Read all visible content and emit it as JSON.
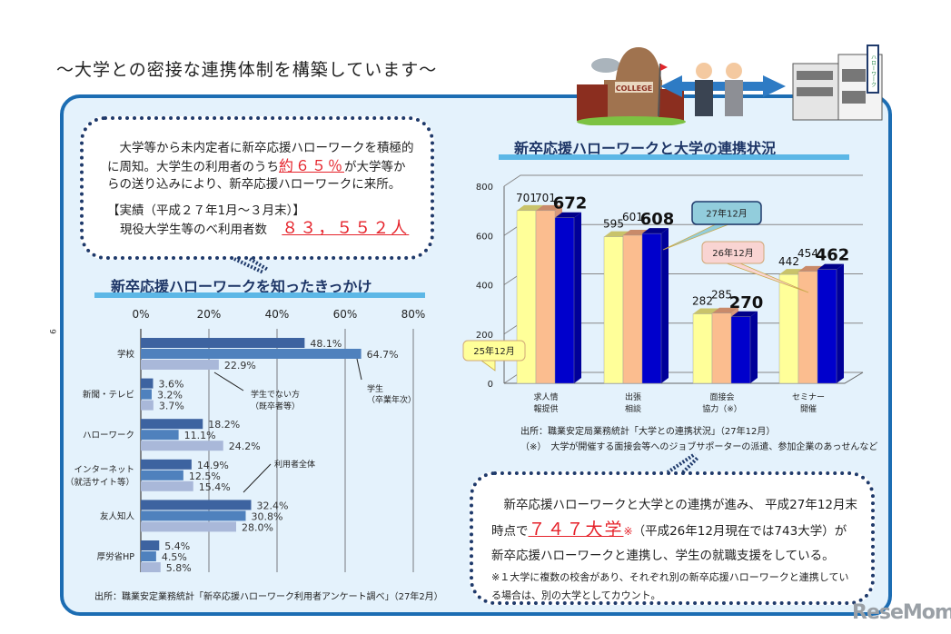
{
  "header": {
    "title": "～大学との密接な連携体制を構築しています～",
    "illustration": {
      "college_sign": "COLLEGE",
      "building_sign": "ハローワーク"
    }
  },
  "page_number": "9",
  "bubble_top": {
    "line1": "大学等から未内定者に新卒応援ハローワークを積極的に周知。大学生の利用者のうち",
    "highlight": "約６５％",
    "line2": "が大学等からの送り込みにより、新卒応援ハローワークに来所。",
    "results_heading": "【実績（平成２７年1月～３月末）】",
    "results_label": "現役大学生等のべ利用者数",
    "results_value": "８３，５５２人"
  },
  "bubble_bottom": {
    "text1": "新卒応援ハローワークと大学との連携が進み、 平成27年12月末時点で",
    "highlight": "７４７大学",
    "mark": "※",
    "text2": "（平成26年12月現在では743大学）が新卒応援ハローワークと連携し、学生の就職支援をしている。",
    "footnote": "※１大学に複数の校舎があり、それぞれ別の新卒応援ハローワークと連携している場合は、別の大学としてカウント。"
  },
  "chart_data": [
    {
      "type": "bar",
      "orientation": "horizontal",
      "title": "新卒応援ハローワークを知ったきっかけ",
      "categories": [
        "学校",
        "新聞・テレビ",
        "ハローワーク",
        "インターネット（就活サイト等）",
        "友人知人",
        "厚労省HP"
      ],
      "category_lines": [
        [
          "学校"
        ],
        [
          "新聞・テレビ"
        ],
        [
          "ハローワーク"
        ],
        [
          "インターネット",
          "（就活サイト等）"
        ],
        [
          "友人知人"
        ],
        [
          "厚労省HP"
        ]
      ],
      "xlim": [
        0,
        80
      ],
      "ticks": [
        "0%",
        "20%",
        "40%",
        "60%",
        "80%"
      ],
      "grid": true,
      "series": [
        {
          "name": "利用者全体",
          "color": "#3d63a0",
          "values": [
            48.1,
            3.6,
            18.2,
            14.9,
            32.4,
            5.4
          ],
          "labels": [
            "48.1%",
            "3.6%",
            "18.2%",
            "14.9%",
            "32.4%",
            "5.4%"
          ]
        },
        {
          "name": "学生（卒業年次）",
          "color": "#4f81bd",
          "values": [
            64.7,
            3.2,
            11.1,
            12.5,
            30.8,
            4.5
          ],
          "labels": [
            "64.7%",
            "3.2%",
            "11.1%",
            "12.5%",
            "30.8%",
            "4.5%"
          ]
        },
        {
          "name": "学生でない方（既卒者等）",
          "color": "#a9b8d9",
          "values": [
            22.9,
            3.7,
            24.2,
            15.4,
            28.0,
            5.8
          ],
          "labels": [
            "22.9%",
            "3.7%",
            "24.2%",
            "15.4%",
            "28.0%",
            "5.8%"
          ]
        }
      ],
      "annotations": {
        "all_users": "利用者全体",
        "students_l1": "学生",
        "students_l2": "（卒業年次）",
        "nonstudents_l1": "学生でない方",
        "nonstudents_l2": "（既卒者等）"
      },
      "source": "出所：職業安定業務統計「新卒応援ハローワーク利用者アンケート調べ」（27年2月）"
    },
    {
      "type": "bar",
      "style": "3d-clustered-column",
      "title": "新卒応援ハローワークと大学の連携状況",
      "categories": [
        "求人情報提供",
        "出張相談",
        "面接会協力（※）",
        "セミナー開催"
      ],
      "category_lines": [
        [
          "求人情",
          "報提供"
        ],
        [
          "出張",
          "相談"
        ],
        [
          "面接会",
          "協力（※）"
        ],
        [
          "セミナー",
          "開催"
        ]
      ],
      "ylim": [
        0,
        800
      ],
      "yticks": [
        "0",
        "200",
        "400",
        "600",
        "800"
      ],
      "grid": true,
      "series": [
        {
          "name": "25年12月",
          "color": "#ffff99",
          "values": [
            701,
            595,
            282,
            442
          ]
        },
        {
          "name": "26年12月",
          "color": "#fbbd8f",
          "values": [
            701,
            601,
            285,
            454
          ]
        },
        {
          "name": "27年12月",
          "color": "#0000cc",
          "values": [
            672,
            608,
            270,
            462
          ]
        }
      ],
      "callout_colors": [
        "#ffff99",
        "#f9d4d2",
        "#92cddc"
      ],
      "source": "出所：職業安定局業務統計「大学との連携状況」（27年12月）",
      "footnote": "（※）　大学が開催する面接会等へのジョブサポーターの派遣、参加企業のあっせんなど"
    }
  ],
  "watermark": "ReseMom"
}
